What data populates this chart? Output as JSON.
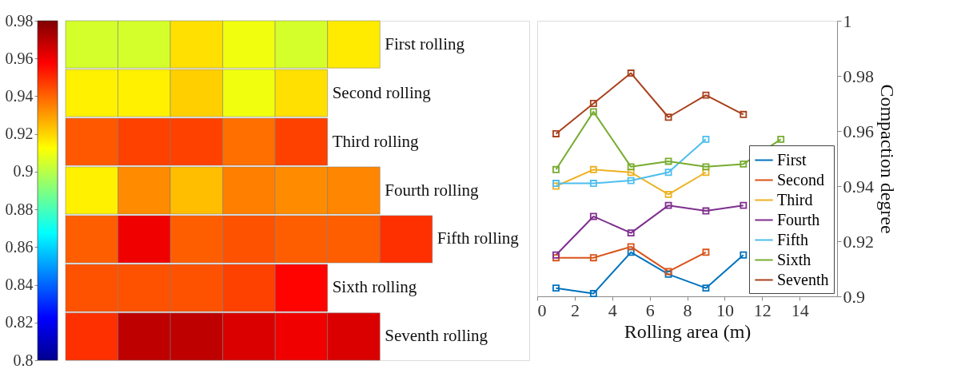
{
  "chart_data": [
    {
      "type": "heatmap",
      "categories": [
        null,
        null,
        null,
        null,
        null,
        null,
        null
      ],
      "y_categories": [
        "First rolling",
        "Second rolling",
        "Third rolling",
        "Fourth rolling",
        "Fifth rolling",
        "Sixth rolling",
        "Seventh rolling"
      ],
      "cells": [
        [
          0.905,
          0.905,
          0.918,
          0.91,
          0.905,
          0.916,
          null
        ],
        [
          0.915,
          0.915,
          0.921,
          0.91,
          0.918,
          null,
          null
        ],
        [
          0.942,
          0.946,
          0.946,
          0.938,
          0.946,
          null,
          null
        ],
        [
          0.915,
          0.933,
          0.924,
          0.935,
          0.933,
          0.934,
          null
        ],
        [
          0.941,
          0.96,
          0.941,
          0.943,
          0.941,
          0.941,
          0.949
        ],
        [
          0.943,
          0.943,
          0.943,
          0.946,
          0.957,
          null,
          null
        ],
        [
          0.949,
          0.969,
          0.969,
          0.964,
          0.96,
          0.964,
          null
        ]
      ],
      "clim": [
        0.8,
        0.98
      ],
      "cticks": [
        0.8,
        0.82,
        0.84,
        0.86,
        0.88,
        0.9,
        0.92,
        0.94,
        0.96,
        0.98
      ]
    },
    {
      "type": "line",
      "xlabel": "Rolling area (m)",
      "ylabel": "Compaction degree",
      "xlim": [
        0,
        16
      ],
      "xticks": [
        0,
        2,
        4,
        6,
        8,
        10,
        12,
        14
      ],
      "ylim": [
        0.9,
        1
      ],
      "yticks": [
        0.9,
        0.92,
        0.94,
        0.96,
        0.98,
        1
      ],
      "marker": "square",
      "line_style": "solid",
      "grid": false,
      "legend": "bottom right",
      "series": [
        {
          "name": "First",
          "color": "#0072bd",
          "x": [
            1,
            3,
            5,
            7,
            9,
            11
          ],
          "values": [
            0.903,
            0.901,
            0.916,
            0.908,
            0.903,
            0.915
          ]
        },
        {
          "name": "Second",
          "color": "#d95319",
          "x": [
            1,
            3,
            5,
            7,
            9
          ],
          "values": [
            0.914,
            0.914,
            0.918,
            0.909,
            0.916
          ]
        },
        {
          "name": "Third",
          "color": "#edb120",
          "x": [
            1,
            3,
            5,
            7,
            9
          ],
          "values": [
            0.94,
            0.946,
            0.945,
            0.937,
            0.945
          ]
        },
        {
          "name": "Fourth",
          "color": "#7e2f8e",
          "x": [
            1,
            3,
            5,
            7,
            9,
            11
          ],
          "values": [
            0.915,
            0.929,
            0.923,
            0.933,
            0.931,
            0.933
          ]
        },
        {
          "name": "Fifth",
          "color": "#4dbeee",
          "x": [
            1,
            3,
            5,
            7,
            9
          ],
          "values": [
            0.941,
            0.941,
            0.942,
            0.945,
            0.957
          ]
        },
        {
          "name": "Sixth",
          "color": "#77ac30",
          "x": [
            1,
            3,
            5,
            7,
            9,
            11,
            13
          ],
          "values": [
            0.946,
            0.967,
            0.947,
            0.949,
            0.947,
            0.948,
            0.957
          ]
        },
        {
          "name": "Seventh",
          "color": "#a8401c",
          "x": [
            1,
            3,
            5,
            7,
            9,
            11
          ],
          "values": [
            0.959,
            0.97,
            0.981,
            0.965,
            0.973,
            0.966
          ]
        }
      ]
    }
  ]
}
